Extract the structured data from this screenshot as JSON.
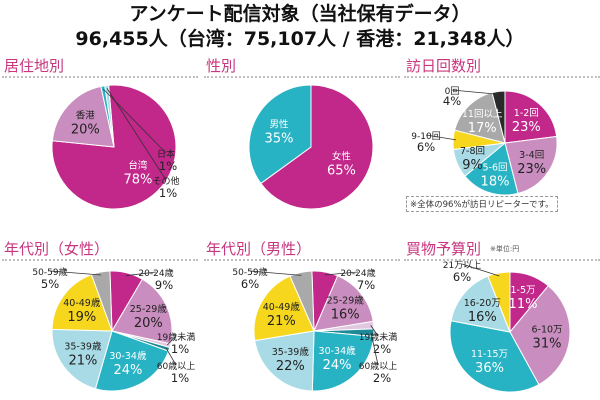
{
  "header": {
    "title_line1": "アンケート配信対象（当社保有データ）",
    "title_line2": "96,455人（台湾：75,107人 / 香港：21,348人）"
  },
  "colors": {
    "magenta": "#c2278a",
    "pink": "#c98dbf",
    "light_pink": "#e2c7e0",
    "teal": "#27b3c4",
    "light_blue": "#a9dbe6",
    "yellow": "#f7d71e",
    "gray": "#a9a9a9",
    "dark": "#2a2a2a",
    "title_accent": "#c8367f"
  },
  "chart_data": [
    {
      "id": "residence",
      "type": "pie",
      "title": "居住地別",
      "slices": [
        {
          "label": "台湾",
          "value": 78,
          "value_label": "78%",
          "color": "#c2278a"
        },
        {
          "label": "香港",
          "value": 20,
          "value_label": "20%",
          "color": "#c98dbf"
        },
        {
          "label": "日本",
          "value": 1,
          "value_label": "1%",
          "color": "#27b3c4"
        },
        {
          "label": "その他",
          "value": 1,
          "value_label": "1%",
          "color": "#a9dbe6"
        }
      ]
    },
    {
      "id": "gender",
      "type": "pie",
      "title": "性別",
      "slices": [
        {
          "label": "女性",
          "value": 65,
          "value_label": "65%",
          "color": "#c2278a"
        },
        {
          "label": "男性",
          "value": 35,
          "value_label": "35%",
          "color": "#27b3c4"
        }
      ]
    },
    {
      "id": "visits",
      "type": "pie",
      "title": "訪日回数別",
      "note": "※全体の96%が訪日リピーターです。",
      "slices": [
        {
          "label": "1-2回",
          "value": 23,
          "value_label": "23%",
          "color": "#c2278a"
        },
        {
          "label": "3-4回",
          "value": 23,
          "value_label": "23%",
          "color": "#c98dbf"
        },
        {
          "label": "5-6回",
          "value": 18,
          "value_label": "18%",
          "color": "#27b3c4"
        },
        {
          "label": "7-8回",
          "value": 9,
          "value_label": "9%",
          "color": "#a9dbe6"
        },
        {
          "label": "9-10回",
          "value": 6,
          "value_label": "6%",
          "color": "#f7d71e"
        },
        {
          "label": "11回以上",
          "value": 17,
          "value_label": "17%",
          "color": "#a9a9a9"
        },
        {
          "label": "0回",
          "value": 4,
          "value_label": "4%",
          "color": "#2a2a2a"
        }
      ]
    },
    {
      "id": "age_female",
      "type": "pie",
      "title": "年代別（女性）",
      "slices": [
        {
          "label": "20-24歳",
          "value": 9,
          "value_label": "9%",
          "color": "#c2278a"
        },
        {
          "label": "25-29歳",
          "value": 20,
          "value_label": "20%",
          "color": "#c98dbf"
        },
        {
          "label": "19歳未満",
          "value": 1,
          "value_label": "1%",
          "color": "#e2c7e0"
        },
        {
          "label": "60歳以上",
          "value": 1,
          "value_label": "1%",
          "color": "#1e8a97"
        },
        {
          "label": "30-34歳",
          "value": 24,
          "value_label": "24%",
          "color": "#27b3c4"
        },
        {
          "label": "35-39歳",
          "value": 21,
          "value_label": "21%",
          "color": "#a9dbe6"
        },
        {
          "label": "40-49歳",
          "value": 19,
          "value_label": "19%",
          "color": "#f7d71e"
        },
        {
          "label": "50-59歳",
          "value": 5,
          "value_label": "5%",
          "color": "#a9a9a9"
        }
      ]
    },
    {
      "id": "age_male",
      "type": "pie",
      "title": "年代別（男性）",
      "slices": [
        {
          "label": "20-24歳",
          "value": 7,
          "value_label": "7%",
          "color": "#c2278a"
        },
        {
          "label": "25-29歳",
          "value": 16,
          "value_label": "16%",
          "color": "#c98dbf"
        },
        {
          "label": "19歳未満",
          "value": 2,
          "value_label": "2%",
          "color": "#e2c7e0"
        },
        {
          "label": "60歳以上",
          "value": 2,
          "value_label": "2%",
          "color": "#1e8a97"
        },
        {
          "label": "30-34歳",
          "value": 24,
          "value_label": "24%",
          "color": "#27b3c4"
        },
        {
          "label": "35-39歳",
          "value": 22,
          "value_label": "22%",
          "color": "#a9dbe6"
        },
        {
          "label": "40-49歳",
          "value": 21,
          "value_label": "21%",
          "color": "#f7d71e"
        },
        {
          "label": "50-59歳",
          "value": 6,
          "value_label": "6%",
          "color": "#a9a9a9"
        }
      ]
    },
    {
      "id": "budget",
      "type": "pie",
      "title": "買物予算別",
      "unit_note": "※単位:円",
      "slices": [
        {
          "label": "1-5万",
          "value": 11,
          "value_label": "11%",
          "color": "#c2278a"
        },
        {
          "label": "6-10万",
          "value": 31,
          "value_label": "31%",
          "color": "#c98dbf"
        },
        {
          "label": "11-15万",
          "value": 36,
          "value_label": "36%",
          "color": "#27b3c4"
        },
        {
          "label": "16-20万",
          "value": 16,
          "value_label": "16%",
          "color": "#a9dbe6"
        },
        {
          "label": "21万以上",
          "value": 6,
          "value_label": "6%",
          "color": "#f7d71e"
        }
      ]
    }
  ]
}
